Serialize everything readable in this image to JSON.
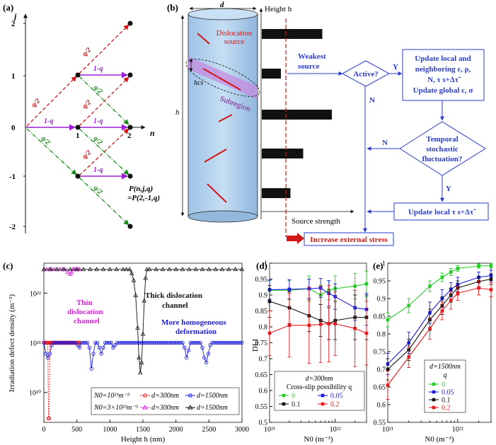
{
  "panels": {
    "a": {
      "label": "(a)",
      "y_axis_label": "j",
      "x_axis_label": "n",
      "y_ticks": [
        "2",
        "1",
        "0",
        "-1",
        "-2"
      ],
      "x_ticks": [
        "1",
        "2"
      ],
      "edge_labels": {
        "up": "q/2",
        "down": "q/2",
        "right": "1-q"
      },
      "prob_label_line1": "P(n,j,q)",
      "prob_label_line2": "=P(2,-1,q)"
    },
    "b": {
      "label": "(b)",
      "d_label": "d",
      "h_label": "h",
      "hcs_label": "hcs",
      "dislocation_source_line1": "Dislocation",
      "dislocation_source_line2": "source",
      "subregion_label": "Subregion",
      "height_axis_label": "Height h",
      "source_strength_label": "Source strength",
      "weakest_source_line1": "Weakest",
      "weakest_source_line2": "source",
      "active_label": "Active?",
      "yes_label_1": "Y",
      "no_label_1": "N",
      "no_label_2": "N",
      "yes_label_2": "Y",
      "update_box_lines": [
        "Update local and",
        "neighboring ε, ρ,",
        "N,   τ s+Δτ̃",
        "Update global ε, σ"
      ],
      "fluct_lines": [
        "Temporal",
        "stochastic",
        "fluctuation?"
      ],
      "update_local_label": "Update local  τ s+Δτ̃",
      "increase_label": "Increase external stress",
      "source_strengths": [
        0.95,
        0.3,
        1.1,
        0.65,
        0.45
      ]
    }
  },
  "chart_data": [
    {
      "panel": "(c)",
      "type": "line",
      "ylabel": "Irradiation defect density (m⁻³)",
      "xlabel": "Height h (nm)",
      "xlim": [
        0,
        3000
      ],
      "ylim": [
        2.5e+19,
        4e+22
      ],
      "yscale": "log",
      "x_ticks": [
        "0",
        "500",
        "1000",
        "1500",
        "2000",
        "2500",
        "3000"
      ],
      "y_ticks": [
        "10²⁰",
        "10²¹",
        "10²²"
      ],
      "annotations": {
        "thin_line1": "Thin",
        "thin_line2": "dislocation",
        "thin_line3": "channel",
        "thick_line1": "Thick  dislocation",
        "thick_line2": "channel",
        "homog_line1": "More homogeneous",
        "homog_line2": "deformation"
      },
      "legend": {
        "row1_n0": "N0=10²¹m⁻³",
        "row2_n0": "N0=3×10²²m⁻³",
        "d300": "d=300nm",
        "d1500": "d=1500nm"
      },
      "series": [
        {
          "name": "d=300nm",
          "group": "N0=10²¹m⁻³",
          "color": "#e8191e",
          "marker": "circle",
          "x": [
            0,
            10,
            20,
            30,
            40,
            50,
            60,
            70,
            80,
            90,
            100,
            110,
            120,
            130,
            140,
            150,
            160,
            170,
            180,
            190,
            200,
            210,
            220,
            230,
            240,
            250,
            260,
            270,
            280,
            290,
            300,
            310,
            320,
            330,
            340,
            350,
            360,
            370,
            380,
            390,
            400,
            410,
            420,
            430,
            440,
            450,
            460,
            470,
            480,
            490,
            500,
            510,
            520,
            530,
            540
          ],
          "y": [
            1e+21,
            1e+21,
            1e+21,
            1e+21,
            1e+21,
            1e+21,
            1e+21,
            3e+19,
            3e+19,
            1e+21,
            1e+21,
            1e+21,
            1e+21,
            1e+21,
            1e+21,
            1e+21,
            1e+21,
            1e+21,
            1e+21,
            1e+21,
            1e+21,
            1e+21,
            1e+21,
            1e+21,
            1e+21,
            1e+21,
            1e+21,
            1e+21,
            1e+21,
            1e+21,
            1e+21,
            1e+21,
            1e+21,
            1e+21,
            1e+21,
            1e+21,
            1e+21,
            1e+21,
            1e+21,
            1e+21,
            1e+21,
            1e+21,
            1e+21,
            1e+21,
            1e+21,
            1e+21,
            1e+21,
            1e+21,
            1e+21,
            1e+21,
            1e+21,
            1e+21,
            1e+21,
            1e+21,
            1e+21
          ]
        },
        {
          "name": "d=1500nm",
          "group": "N0=10²¹m⁻³",
          "color": "#1c1ce0",
          "marker": "circle",
          "x": [
            0,
            30,
            60,
            90,
            120,
            150,
            180,
            210,
            240,
            270,
            300,
            330,
            360,
            390,
            420,
            450,
            480,
            510,
            540,
            570,
            600,
            630,
            660,
            690,
            720,
            750,
            780,
            810,
            840,
            870,
            900,
            930,
            960,
            990,
            1020,
            1050,
            1080,
            1110,
            1140,
            1170,
            1200,
            1230,
            1260,
            1290,
            1320,
            1350,
            1380,
            1410,
            1440,
            1470,
            1500,
            1530,
            1560,
            1590,
            1620,
            1650,
            1680,
            1710,
            1740,
            1770,
            1800,
            1830,
            1860,
            1890,
            1920,
            1950,
            1980,
            2010,
            2040,
            2070,
            2100,
            2130,
            2160,
            2190,
            2220,
            2250,
            2280,
            2310,
            2340,
            2370,
            2400,
            2430,
            2460,
            2490,
            2520,
            2550,
            2580,
            2610,
            2640,
            2670,
            2700,
            2730,
            2760,
            2790,
            2820,
            2850,
            2880,
            2910,
            2940,
            2970,
            3000
          ],
          "y": [
            1e+21,
            6e+20,
            5e+20,
            6e+20,
            9e+20,
            1e+21,
            1e+21,
            1e+21,
            1e+21,
            1e+21,
            1e+21,
            1e+21,
            1e+21,
            1e+21,
            1e+21,
            1e+21,
            1e+21,
            9e+20,
            8e+20,
            1e+21,
            1e+21,
            1e+21,
            1e+21,
            8e+20,
            3e+20,
            6e+20,
            1e+21,
            1e+21,
            8e+20,
            6e+20,
            8e+20,
            1e+21,
            1e+21,
            1e+21,
            1e+21,
            8e+20,
            9e+20,
            1e+21,
            1e+21,
            1e+21,
            1e+21,
            1e+21,
            1e+21,
            1e+21,
            1e+21,
            1e+21,
            1e+21,
            1e+21,
            1e+21,
            1e+21,
            1e+21,
            1e+21,
            1e+21,
            1e+21,
            1e+21,
            1e+21,
            1e+21,
            1e+21,
            1e+21,
            1e+21,
            1e+21,
            1e+21,
            1e+21,
            1e+21,
            1e+21,
            1e+21,
            1e+21,
            1e+21,
            1e+21,
            1e+21,
            1e+21,
            8e+20,
            5e+20,
            7e+20,
            1e+21,
            1e+21,
            1e+21,
            1e+21,
            1e+21,
            1e+21,
            8e+20,
            5e+20,
            4e+20,
            6e+20,
            9e+20,
            1e+21,
            1e+21,
            1e+21,
            1e+21,
            1e+21,
            1e+21,
            1e+21,
            1e+21,
            1e+21,
            1e+21,
            1e+21,
            1e+21,
            1e+21,
            1e+21,
            1e+21,
            1e+21
          ]
        },
        {
          "name": "d=300nm",
          "group": "N0=3×10²²m⁻³",
          "color": "#e020e0",
          "marker": "triangle",
          "x": [
            0,
            40,
            80,
            120,
            160,
            200,
            240,
            280,
            320,
            360,
            400,
            420,
            440,
            460,
            480,
            500,
            520,
            540
          ],
          "y": [
            3e+22,
            3e+22,
            3e+22,
            3e+22,
            3e+22,
            3e+22,
            3e+22,
            3e+22,
            3e+22,
            2.6e+22,
            2.4e+22,
            2.6e+22,
            3e+22,
            3e+22,
            3e+22,
            3e+22,
            3e+22,
            3e+22
          ]
        },
        {
          "name": "d=1500nm",
          "group": "N0=3×10²²m⁻³",
          "color": "#111111",
          "marker": "triangle",
          "x": [
            0,
            100,
            200,
            300,
            400,
            500,
            600,
            700,
            800,
            900,
            1000,
            1100,
            1200,
            1250,
            1300,
            1330,
            1360,
            1390,
            1420,
            1440,
            1460,
            1480,
            1500,
            1520,
            1540,
            1560,
            1600,
            1700,
            1800,
            1900,
            2000,
            2100,
            2200,
            2300,
            2400,
            2500,
            2600,
            2700,
            2800,
            2900,
            3000
          ],
          "y": [
            3e+22,
            3e+22,
            3e+22,
            3e+22,
            3e+22,
            3e+22,
            3e+22,
            3e+22,
            3e+22,
            3e+22,
            3e+22,
            3e+22,
            3e+22,
            3e+22,
            3e+22,
            2.5e+22,
            1.8e+22,
            9e+21,
            2e+21,
            5e+20,
            2.5e+20,
            4e+20,
            1.5e+21,
            7e+21,
            2e+22,
            3e+22,
            3e+22,
            3e+22,
            3e+22,
            3e+22,
            3e+22,
            3e+22,
            3e+22,
            3e+22,
            3e+22,
            3e+22,
            3e+22,
            3e+22,
            3e+22,
            3e+22,
            3e+22
          ]
        }
      ]
    },
    {
      "panel": "(d)",
      "type": "line",
      "ylabel": "DLI",
      "xlabel": "N0 (m⁻³)",
      "xscale": "log",
      "xlim": [
        1e+21,
        3e+22
      ],
      "ylim": [
        0.5,
        1.0
      ],
      "y_ticks": [
        "0.5",
        "0.55",
        "0.6",
        "0.65",
        "0.7",
        "0.75",
        "0.8",
        "0.85",
        "0.9",
        "0.95",
        "1"
      ],
      "x_ticks": [
        "10²¹",
        "10²²"
      ],
      "legend_title_line1": "d=300nm",
      "legend_title_line2": "Cross-slip possibility q",
      "x": [
        1e+21,
        2e+21,
        4e+21,
        6e+21,
        8e+21,
        1e+22,
        2e+22,
        3e+22
      ],
      "series": [
        {
          "name": "0",
          "color": "#22cc22",
          "values": [
            0.915,
            0.915,
            0.92,
            0.9,
            0.915,
            0.92,
            0.928,
            0.935
          ],
          "errors": [
            0.03,
            0.03,
            0.04,
            0.03,
            0.03,
            0.04,
            0.04,
            0.04
          ]
        },
        {
          "name": "0.05",
          "color": "#1a1ae0",
          "values": [
            0.917,
            0.918,
            0.92,
            0.922,
            0.905,
            0.895,
            0.86,
            0.855
          ],
          "errors": [
            0.03,
            0.03,
            0.03,
            0.03,
            0.04,
            0.04,
            0.04,
            0.05
          ]
        },
        {
          "name": "0.1",
          "color": "#111111",
          "values": [
            0.88,
            0.86,
            0.835,
            0.82,
            0.81,
            0.82,
            0.83,
            0.83
          ],
          "errors": [
            0.05,
            0.05,
            0.05,
            0.05,
            0.05,
            0.06,
            0.07,
            0.07
          ]
        },
        {
          "name": "0.2",
          "color": "#e8191e",
          "values": [
            0.78,
            0.805,
            0.805,
            0.808,
            0.81,
            0.81,
            0.795,
            0.78
          ],
          "errors": [
            0.07,
            0.1,
            0.12,
            0.12,
            0.12,
            0.1,
            0.12,
            0.1
          ]
        }
      ]
    },
    {
      "panel": "(e)",
      "type": "line",
      "ylabel": "",
      "xlabel": "N0 (m⁻³)",
      "xscale": "log",
      "xlim": [
        1e+21,
        3e+22
      ],
      "ylim": [
        0.55,
        1.0
      ],
      "y_ticks": [
        "0.55",
        "0.6",
        "0.65",
        "0.7",
        "0.75",
        "0.8",
        "0.85",
        "0.9",
        "0.95",
        "1"
      ],
      "x_ticks": [
        "10²¹",
        "10²²"
      ],
      "legend_title_line1": "d=1500nm",
      "legend_title_line2": "q",
      "x": [
        1e+21,
        2e+21,
        4e+21,
        6e+21,
        8e+21,
        1e+22,
        2e+22,
        3e+22
      ],
      "series": [
        {
          "name": "0",
          "color": "#22cc22",
          "values": [
            0.84,
            0.88,
            0.935,
            0.96,
            0.975,
            0.985,
            0.992,
            0.993
          ],
          "errors": [
            0.02,
            0.02,
            0.015,
            0.012,
            0.01,
            0.008,
            0.006,
            0.006
          ]
        },
        {
          "name": "0.05",
          "color": "#1a1ae0",
          "values": [
            0.715,
            0.775,
            0.86,
            0.9,
            0.925,
            0.94,
            0.96,
            0.965
          ],
          "errors": [
            0.03,
            0.03,
            0.03,
            0.025,
            0.02,
            0.02,
            0.015,
            0.015
          ]
        },
        {
          "name": "0.1",
          "color": "#111111",
          "values": [
            0.7,
            0.755,
            0.84,
            0.88,
            0.91,
            0.93,
            0.948,
            0.955
          ],
          "errors": [
            0.03,
            0.03,
            0.03,
            0.025,
            0.02,
            0.02,
            0.015,
            0.015
          ]
        },
        {
          "name": "0.2",
          "color": "#e8191e",
          "values": [
            0.655,
            0.735,
            0.815,
            0.865,
            0.895,
            0.915,
            0.93,
            0.925
          ],
          "errors": [
            0.04,
            0.03,
            0.03,
            0.025,
            0.025,
            0.02,
            0.02,
            0.02
          ]
        }
      ]
    }
  ]
}
